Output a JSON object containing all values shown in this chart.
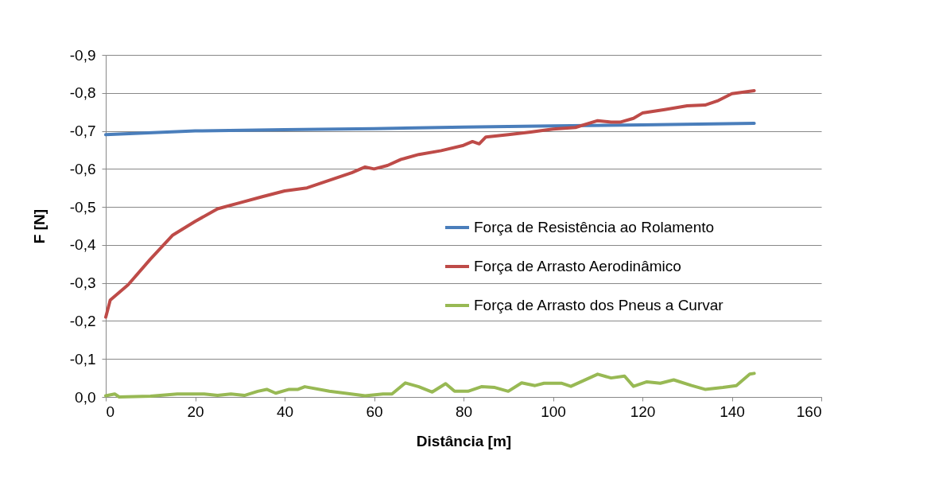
{
  "chart_data": {
    "type": "line",
    "xlabel": "Distância [m]",
    "ylabel": "F [N]",
    "xlim": [
      0,
      160
    ],
    "xticks": [
      0,
      20,
      40,
      60,
      80,
      100,
      120,
      140,
      160
    ],
    "ylim": [
      0,
      -0.9
    ],
    "yticks": [
      {
        "value": 0,
        "label": "0,0"
      },
      {
        "value": -0.1,
        "label": "-0,1"
      },
      {
        "value": -0.2,
        "label": "-0,2"
      },
      {
        "value": -0.3,
        "label": "-0,3"
      },
      {
        "value": -0.4,
        "label": "-0,4"
      },
      {
        "value": -0.5,
        "label": "-0,5"
      },
      {
        "value": -0.6,
        "label": "-0,6"
      },
      {
        "value": -0.7,
        "label": "-0,7"
      },
      {
        "value": -0.8,
        "label": "-0,8"
      },
      {
        "value": -0.9,
        "label": "-0,9"
      }
    ],
    "grid": "y",
    "legend": "right",
    "marker": "none",
    "line_style": "solid",
    "series": [
      {
        "name": "Força de Resistência ao Rolamento",
        "color": "#4a7ebb",
        "x": [
          0,
          20,
          40,
          60,
          80,
          100,
          120,
          145
        ],
        "values": [
          -0.69,
          -0.7,
          -0.703,
          -0.706,
          -0.71,
          -0.713,
          -0.716,
          -0.72
        ]
      },
      {
        "name": "Força de Arrasto Aerodinâmico",
        "color": "#be4b48",
        "x": [
          0,
          1,
          5,
          10,
          15,
          20,
          25,
          30,
          35,
          40,
          45,
          50,
          55,
          58,
          60,
          63,
          66,
          70,
          75,
          80,
          82,
          83.5,
          85,
          90,
          95,
          100,
          105,
          110,
          113,
          115,
          118,
          120,
          125,
          130,
          134,
          137,
          140,
          145
        ],
        "values": [
          -0.21,
          -0.255,
          -0.295,
          -0.363,
          -0.426,
          -0.462,
          -0.495,
          -0.511,
          -0.527,
          -0.542,
          -0.55,
          -0.57,
          -0.59,
          -0.605,
          -0.6,
          -0.609,
          -0.625,
          -0.638,
          -0.648,
          -0.662,
          -0.672,
          -0.666,
          -0.684,
          -0.69,
          -0.697,
          -0.705,
          -0.709,
          -0.727,
          -0.723,
          -0.723,
          -0.733,
          -0.747,
          -0.756,
          -0.766,
          -0.768,
          -0.78,
          -0.798,
          -0.806
        ]
      },
      {
        "name": "Força de Arrasto dos Pneus a Curvar",
        "color": "#98b954",
        "x": [
          0,
          2,
          3,
          10,
          16,
          22,
          25,
          28,
          31,
          34,
          36,
          38,
          41,
          43,
          44.5,
          50,
          58,
          62,
          64,
          67,
          70,
          73,
          76,
          78,
          81,
          84,
          87,
          90,
          93,
          96,
          98,
          102,
          104,
          110,
          113,
          116,
          118,
          121,
          124,
          127,
          131,
          134,
          138,
          141,
          144,
          145
        ],
        "values": [
          -0.003,
          -0.008,
          0,
          -0.002,
          -0.008,
          -0.008,
          -0.004,
          -0.008,
          -0.004,
          -0.015,
          -0.02,
          -0.01,
          -0.02,
          -0.02,
          -0.027,
          -0.015,
          -0.003,
          -0.008,
          -0.008,
          -0.037,
          -0.027,
          -0.013,
          -0.035,
          -0.015,
          -0.015,
          -0.027,
          -0.025,
          -0.015,
          -0.037,
          -0.03,
          -0.036,
          -0.036,
          -0.028,
          -0.06,
          -0.05,
          -0.055,
          -0.028,
          -0.04,
          -0.036,
          -0.045,
          -0.03,
          -0.02,
          -0.025,
          -0.03,
          -0.06,
          -0.062
        ]
      }
    ]
  }
}
